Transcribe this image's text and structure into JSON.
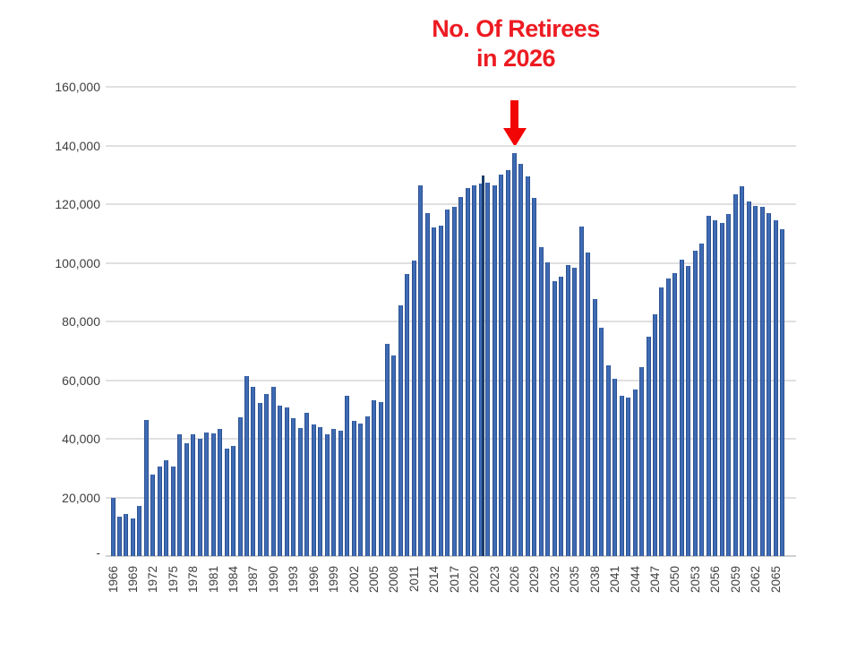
{
  "chart_data": {
    "type": "bar",
    "title": "No. Of Retirees in 2026",
    "title_lines": [
      "No. Of Retirees",
      "in 2026"
    ],
    "annotation": {
      "text": "No. Of Retirees in 2026",
      "arrow_points_to_year": 2026,
      "arrow_glyph": "down-arrow"
    },
    "xlabel": "",
    "ylabel": "",
    "ylim": [
      0,
      160000
    ],
    "grid": true,
    "legend": "none",
    "y_tick_labels": [
      "160,000",
      "140,000",
      "120,000",
      "100,000",
      "80,000",
      "60,000",
      "40,000",
      "20,000",
      "-"
    ],
    "x_tick_labels": [
      "1966",
      "1969",
      "1972",
      "1975",
      "1978",
      "1981",
      "1984",
      "1987",
      "1990",
      "1993",
      "1996",
      "1999",
      "2002",
      "2005",
      "2008",
      "2011",
      "2014",
      "2017",
      "2020",
      "2023",
      "2026",
      "2029",
      "2032",
      "2035",
      "2038",
      "2041",
      "2044",
      "2047",
      "2050",
      "2053",
      "2056",
      "2059",
      "2062",
      "2065"
    ],
    "x_tick_step": 3,
    "categories": [
      1966,
      1967,
      1968,
      1969,
      1970,
      1971,
      1972,
      1973,
      1974,
      1975,
      1976,
      1977,
      1978,
      1979,
      1980,
      1981,
      1982,
      1983,
      1984,
      1985,
      1986,
      1987,
      1988,
      1989,
      1990,
      1991,
      1992,
      1993,
      1994,
      1995,
      1996,
      1997,
      1998,
      1999,
      2000,
      2001,
      2002,
      2003,
      2004,
      2005,
      2006,
      2007,
      2008,
      2009,
      2010,
      2011,
      2012,
      2013,
      2014,
      2015,
      2016,
      2017,
      2018,
      2019,
      2020,
      2021,
      2022,
      2023,
      2024,
      2025,
      2026,
      2027,
      2028,
      2029,
      2030,
      2031,
      2032,
      2033,
      2034,
      2035,
      2036,
      2037,
      2038,
      2039,
      2040,
      2041,
      2042,
      2043,
      2044,
      2045,
      2046,
      2047,
      2048,
      2049,
      2050,
      2051,
      2052,
      2053,
      2054,
      2055,
      2056,
      2057,
      2058,
      2059,
      2060,
      2061,
      2062,
      2063,
      2064,
      2065,
      2066
    ],
    "series": [
      {
        "name": "No. of Retirees",
        "values": [
          20000,
          13300,
          14500,
          12900,
          17000,
          46500,
          27700,
          30400,
          32600,
          30400,
          41600,
          38600,
          41600,
          40000,
          42000,
          41900,
          43400,
          36700,
          37500,
          47200,
          61300,
          57800,
          52100,
          55200,
          57800,
          51300,
          50800,
          47000,
          43700,
          49000,
          44900,
          44000,
          41500,
          43400,
          42600,
          54800,
          46200,
          45100,
          47500,
          53100,
          52600,
          72500,
          68500,
          85500,
          96200,
          100800,
          126500,
          117000,
          112000,
          112600,
          118300,
          119100,
          122400,
          125600,
          126300,
          127000,
          127300,
          126500,
          130200,
          131500,
          137500,
          133800,
          129500,
          122200,
          105400,
          100300,
          93600,
          95200,
          99100,
          98200,
          112500,
          103600,
          87700,
          77800,
          65100,
          60500,
          54700,
          54000,
          56700,
          64400,
          74900,
          82400,
          91600,
          94700,
          96500,
          101000,
          99000,
          104000,
          106500,
          116000,
          114500,
          113500,
          116500,
          123500,
          126000,
          121000,
          119500,
          119000,
          117000,
          114500,
          111500
        ]
      }
    ],
    "peak": {
      "year": 2026,
      "value": 137500
    },
    "colors": {
      "bar": "#3e6bb5",
      "title": "#ed1b22",
      "arrow": "#f20505",
      "gridline": "#e0e0e0",
      "axis_text": "#404040"
    }
  }
}
